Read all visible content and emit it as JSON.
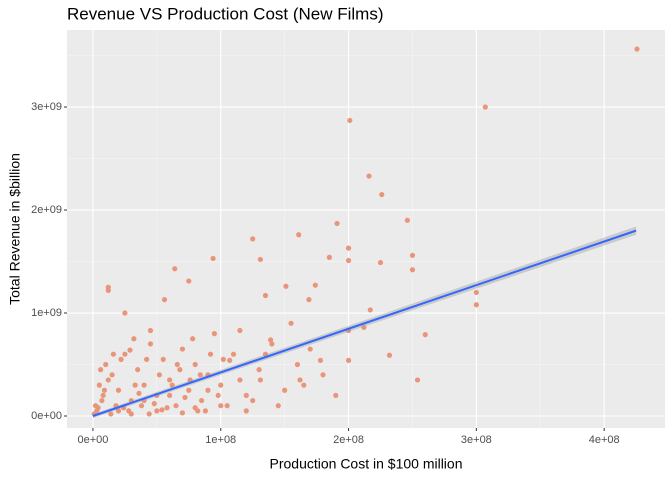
{
  "chart_data": {
    "type": "scatter",
    "title": "Revenue VS Production Cost (New Films)",
    "x_label": "Production Cost in $100 million",
    "y_label": "Total Revenue in $billion",
    "xlim": [
      -20300000.0,
      447600000.0
    ],
    "ylim": [
      -116500000.0,
      3748000000.0
    ],
    "xticks": [
      {
        "value": 0,
        "label": "0e+00"
      },
      {
        "value": 100000000.0,
        "label": "1e+08"
      },
      {
        "value": 200000000.0,
        "label": "2e+08"
      },
      {
        "value": 300000000.0,
        "label": "3e+08"
      },
      {
        "value": 400000000.0,
        "label": "4e+08"
      }
    ],
    "yticks": [
      {
        "value": 0,
        "label": "0e+00"
      },
      {
        "value": 1000000000.0,
        "label": "1e+09"
      },
      {
        "value": 2000000000.0,
        "label": "2e+09"
      },
      {
        "value": 3000000000.0,
        "label": "3e+09"
      }
    ],
    "x_minor_ticks": [
      50000000.0,
      150000000.0,
      250000000.0,
      350000000.0
    ],
    "y_minor_ticks": [
      500000000.0,
      1500000000.0,
      2500000000.0,
      3500000000.0
    ],
    "grid": true,
    "series": [
      {
        "color": "#e8957a",
        "x": [
          425700000.0,
          307000000.0,
          201000000.0,
          216000000.0,
          226000000.0,
          191000000.0,
          246000000.0,
          200000000.0,
          161000000.0,
          125000000.0,
          200000000.0,
          250000000.0,
          250000000.0,
          225000000.0,
          185000000.0,
          300000000.0,
          300000000.0,
          260000000.0,
          254000000.0,
          232000000.0,
          94000000.0,
          64000000.0,
          12000000.0,
          12000000.0,
          75000000.0,
          131000000.0,
          135000000.0,
          151000000.0,
          174000000.0,
          169000000.0,
          217000000.0,
          212000000.0,
          200000000.0,
          200000000.0,
          107000000.0,
          84000000.0,
          131000000.0,
          162000000.0,
          178000000.0,
          115000000.0,
          139000000.0,
          45000000.0,
          56000000.0,
          29000000.0,
          25000000.0,
          2000000.0,
          5000000.0,
          8000000.0,
          10000000.0,
          15000000.0,
          20000000.0,
          25000000.0,
          30000000.0,
          35000000.0,
          40000000.0,
          45000000.0,
          50000000.0,
          55000000.0,
          60000000.0,
          65000000.0,
          70000000.0,
          75000000.0,
          80000000.0,
          85000000.0,
          90000000.0,
          95000000.0,
          100000000.0,
          110000000.0,
          120000000.0,
          130000000.0,
          140000000.0,
          150000000.0,
          160000000.0,
          170000000.0,
          180000000.0,
          3000000.0,
          7000000.0,
          12000000.0,
          18000000.0,
          22000000.0,
          28000000.0,
          33000000.0,
          38000000.0,
          42000000.0,
          48000000.0,
          52000000.0,
          58000000.0,
          62000000.0,
          68000000.0,
          72000000.0,
          78000000.0,
          88000000.0,
          98000000.0,
          105000000.0,
          125000000.0,
          145000000.0,
          155000000.0,
          165000000.0,
          190000000.0,
          1000000.0,
          4000000.0,
          6000000.0,
          9000000.0,
          14000000.0,
          16000000.0,
          24000000.0,
          32000000.0,
          36000000.0,
          44000000.0,
          54000000.0,
          66000000.0,
          76000000.0,
          82000000.0,
          92000000.0,
          102000000.0,
          115000000.0,
          135000000.0,
          20000000.0,
          30000000.0,
          40000000.0,
          50000000.0,
          60000000.0,
          70000000.0,
          80000000.0,
          90000000.0,
          100000000.0,
          120000000.0
        ],
        "values": [
          3563000000.0,
          3000000000.0,
          2870000000.0,
          2330000000.0,
          2150000000.0,
          1870000000.0,
          1900000000.0,
          1630000000.0,
          1760000000.0,
          1720000000.0,
          1510000000.0,
          1560000000.0,
          1420000000.0,
          1490000000.0,
          1540000000.0,
          1200000000.0,
          1080000000.0,
          790000000.0,
          350000000.0,
          590000000.0,
          1530000000.0,
          1430000000.0,
          1250000000.0,
          1220000000.0,
          1310000000.0,
          1520000000.0,
          1170000000.0,
          1260000000.0,
          1270000000.0,
          1130000000.0,
          1030000000.0,
          860000000.0,
          830000000.0,
          540000000.0,
          540000000.0,
          400000000.0,
          350000000.0,
          350000000.0,
          540000000.0,
          830000000.0,
          740000000.0,
          830000000.0,
          1130000000.0,
          640000000.0,
          1000000000.0,
          100000000.0,
          300000000.0,
          200000000.0,
          500000000.0,
          400000000.0,
          250000000.0,
          600000000.0,
          150000000.0,
          450000000.0,
          300000000.0,
          700000000.0,
          200000000.0,
          550000000.0,
          350000000.0,
          100000000.0,
          650000000.0,
          250000000.0,
          500000000.0,
          150000000.0,
          400000000.0,
          800000000.0,
          300000000.0,
          600000000.0,
          200000000.0,
          450000000.0,
          700000000.0,
          250000000.0,
          500000000.0,
          650000000.0,
          400000000.0,
          50000000.0,
          150000000.0,
          350000000.0,
          100000000.0,
          550000000.0,
          50000000.0,
          300000000.0,
          100000000.0,
          550000000.0,
          120000000.0,
          400000000.0,
          80000000.0,
          300000000.0,
          450000000.0,
          180000000.0,
          750000000.0,
          50000000.0,
          200000000.0,
          100000000.0,
          150000000.0,
          100000000.0,
          900000000.0,
          300000000.0,
          200000000.0,
          20000000.0,
          80000000.0,
          450000000.0,
          250000000.0,
          20000000.0,
          600000000.0,
          80000000.0,
          750000000.0,
          220000000.0,
          20000000.0,
          60000000.0,
          500000000.0,
          350000000.0,
          50000000.0,
          600000000.0,
          550000000.0,
          350000000.0,
          600000000.0,
          50000000.0,
          20000000.0,
          150000000.0,
          50000000.0,
          200000000.0,
          30000000.0,
          80000000.0,
          250000000.0,
          100000000.0,
          50000000.0
        ]
      }
    ],
    "trend_line": {
      "color": "#3366ff",
      "x": [
        0,
        425000000.0
      ],
      "y": [
        0,
        1800000000.0
      ],
      "ci_lower": [
        -20000000.0,
        1760000000.0
      ],
      "ci_upper": [
        20000000.0,
        1840000000.0
      ]
    }
  }
}
